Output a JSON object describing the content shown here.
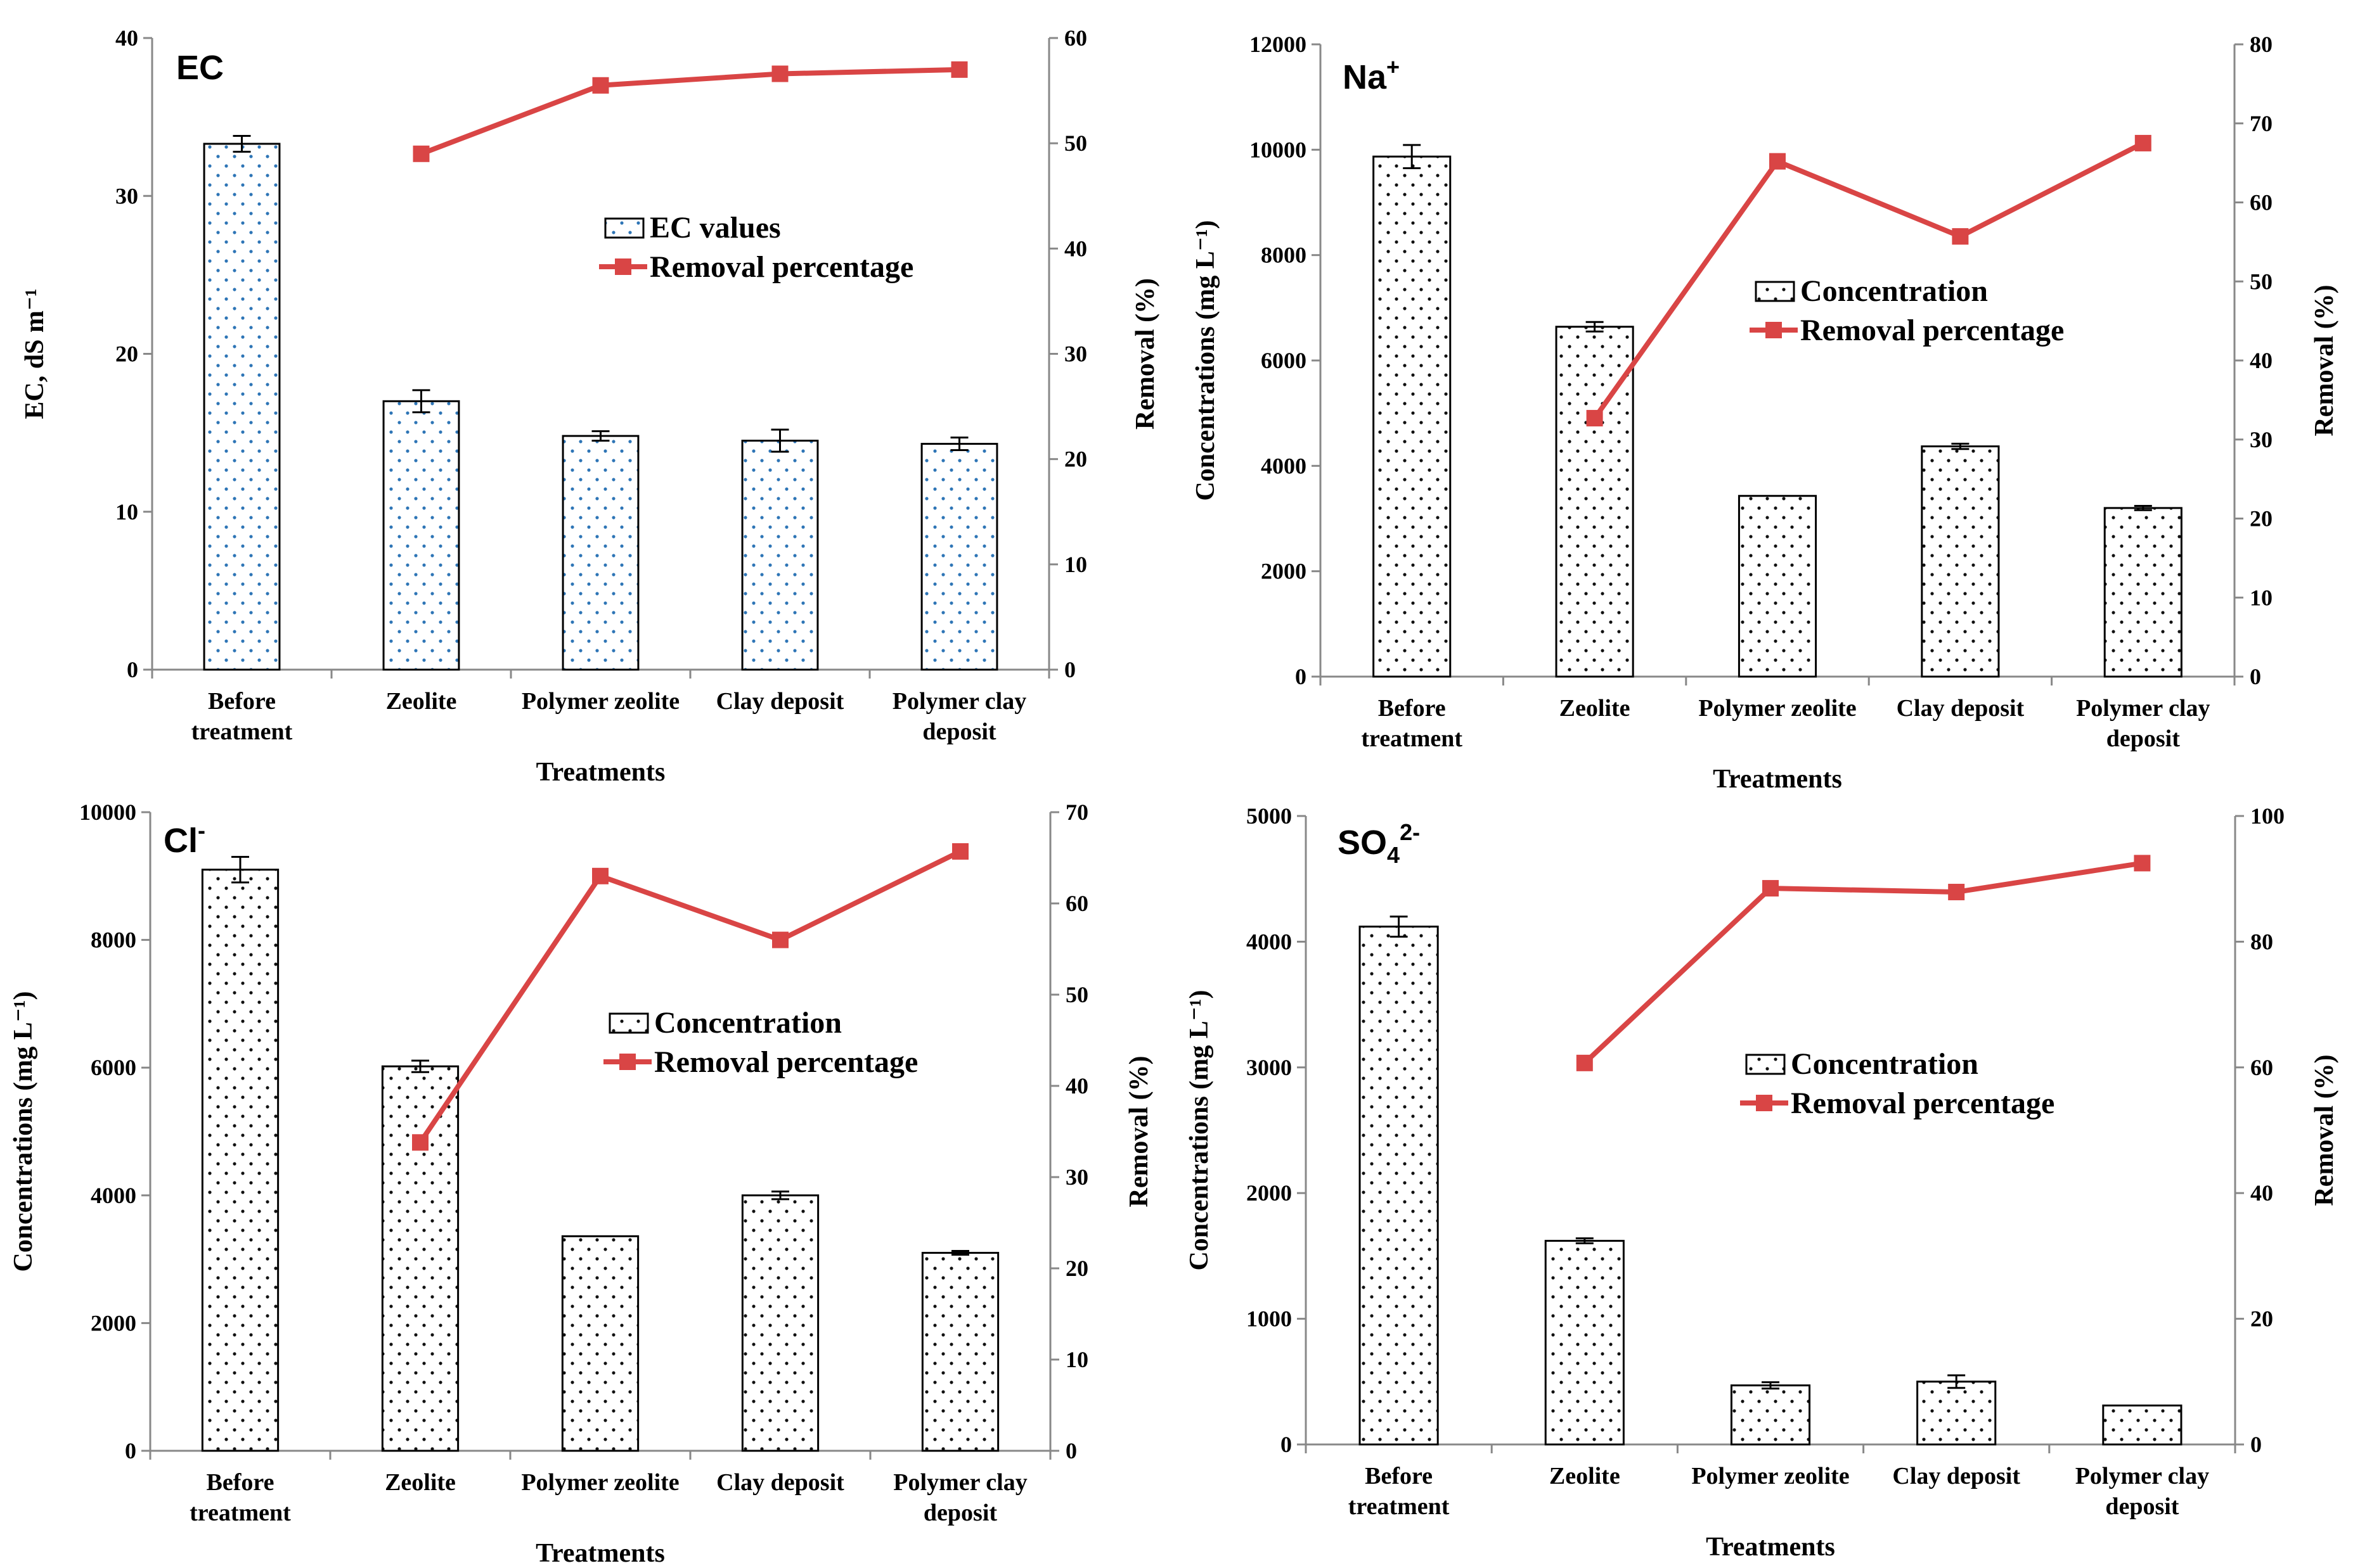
{
  "chart_data": [
    {
      "type": "bar",
      "title": "EC",
      "categories": [
        "Before treatment",
        "Zeolite",
        "Polymer zeolite",
        "Clay deposit",
        "Polymer clay deposit"
      ],
      "xlabel": "Treatments",
      "ylabel": "EC, dS m⁻¹",
      "y2label": "Removal (%)",
      "ylim": [
        0,
        40
      ],
      "y2lim": [
        0,
        60
      ],
      "yticks": [
        0,
        10,
        20,
        30,
        40
      ],
      "y2ticks": [
        0,
        10,
        20,
        30,
        40,
        50,
        60
      ],
      "series": [
        {
          "name": "EC values",
          "kind": "bar",
          "values": [
            33.3,
            17.0,
            14.8,
            14.5,
            14.3
          ],
          "errors": [
            0.5,
            0.7,
            0.3,
            0.7,
            0.4
          ]
        },
        {
          "name": "Removal percentage",
          "kind": "line",
          "axis": "y2",
          "values": [
            null,
            49.0,
            55.5,
            56.6,
            57.0
          ]
        }
      ],
      "dot_color": "#2e75b6",
      "line_color": "#d94545",
      "legend_position": "center-right"
    },
    {
      "type": "bar",
      "title": "Na",
      "title_sup": "+",
      "categories": [
        "Before treatment",
        "Zeolite",
        "Polymer zeolite",
        "Clay deposit",
        "Polymer clay deposit"
      ],
      "xlabel": "Treatments",
      "ylabel": "Concentrations (mg L⁻¹)",
      "y2label": "Removal (%)",
      "ylim": [
        0,
        12000
      ],
      "y2lim": [
        0,
        80
      ],
      "yticks": [
        0,
        2000,
        4000,
        6000,
        8000,
        10000,
        12000
      ],
      "y2ticks": [
        0,
        10,
        20,
        30,
        40,
        50,
        60,
        70,
        80
      ],
      "series": [
        {
          "name": "Concentration",
          "kind": "bar",
          "values": [
            9870,
            6640,
            3430,
            4370,
            3200
          ],
          "errors": [
            220,
            90,
            0,
            50,
            40
          ]
        },
        {
          "name": "Removal percentage",
          "kind": "line",
          "axis": "y2",
          "values": [
            null,
            32.7,
            65.2,
            55.7,
            67.5
          ]
        }
      ],
      "dot_color": "#000000",
      "line_color": "#d94545",
      "legend_position": "center-right"
    },
    {
      "type": "bar",
      "title": "Cl",
      "title_sup": "-",
      "categories": [
        "Before treatment",
        "Zeolite",
        "Polymer zeolite",
        "Clay deposit",
        "Polymer clay deposit"
      ],
      "xlabel": "Treatments",
      "ylabel": "Concentrations (mg L⁻¹)",
      "y2label": "Removal (%)",
      "ylim": [
        0,
        10000
      ],
      "y2lim": [
        0,
        70
      ],
      "yticks": [
        0,
        2000,
        4000,
        6000,
        8000,
        10000
      ],
      "y2ticks": [
        0,
        10,
        20,
        30,
        40,
        50,
        60,
        70
      ],
      "series": [
        {
          "name": "Concentration",
          "kind": "bar",
          "values": [
            9100,
            6020,
            3360,
            4000,
            3100
          ],
          "errors": [
            200,
            90,
            0,
            60,
            30
          ]
        },
        {
          "name": "Removal percentage",
          "kind": "line",
          "axis": "y2",
          "values": [
            null,
            33.8,
            63.0,
            56.0,
            65.7
          ]
        }
      ],
      "dot_color": "#000000",
      "line_color": "#d94545",
      "legend_position": "center-right"
    },
    {
      "type": "bar",
      "title": "SO",
      "title_sub": "4",
      "title_sup": "2-",
      "categories": [
        "Before treatment",
        "Zeolite",
        "Polymer zeolite",
        "Clay deposit",
        "Polymer clay deposit"
      ],
      "xlabel": "Treatments",
      "ylabel": "Concentrations (mg L⁻¹)",
      "y2label": "Removal (%)",
      "ylim": [
        0,
        5000
      ],
      "y2lim": [
        0,
        100
      ],
      "yticks": [
        0,
        1000,
        2000,
        3000,
        4000,
        5000
      ],
      "y2ticks": [
        0,
        20,
        40,
        60,
        80,
        100
      ],
      "series": [
        {
          "name": "Concentration",
          "kind": "bar",
          "values": [
            4120,
            1620,
            470,
            500,
            310
          ],
          "errors": [
            80,
            20,
            25,
            50,
            0
          ]
        },
        {
          "name": "Removal percentage",
          "kind": "line",
          "axis": "y2",
          "values": [
            null,
            60.7,
            88.5,
            87.9,
            92.5
          ]
        }
      ],
      "dot_color": "#000000",
      "line_color": "#d94545",
      "legend_position": "center-right"
    }
  ]
}
